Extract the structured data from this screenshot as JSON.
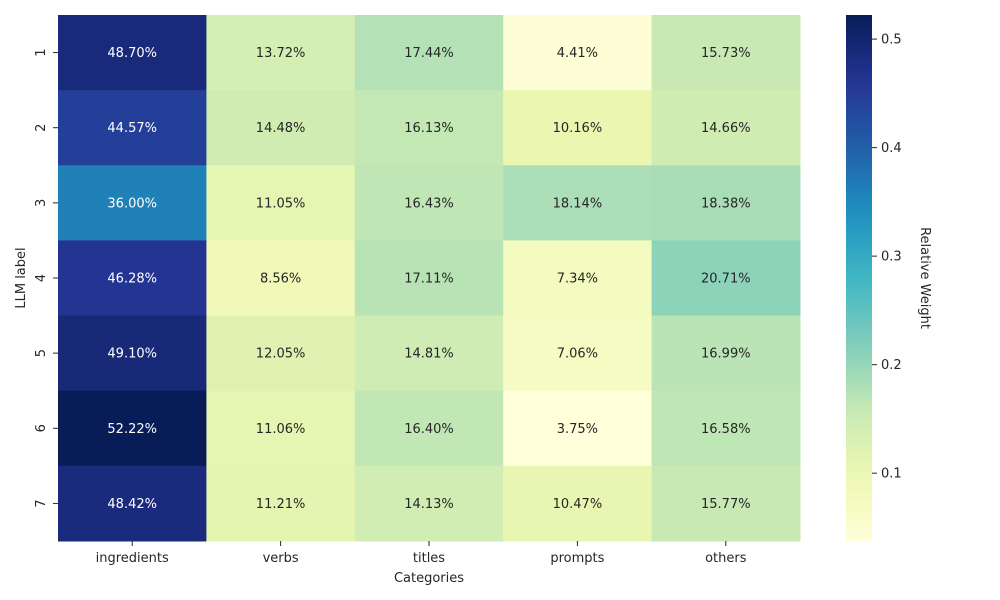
{
  "chart_data": {
    "type": "heatmap",
    "xlabel": "Categories",
    "ylabel": "LLM label",
    "colorbar_label": "Relative Weight",
    "columns": [
      "ingredients",
      "verbs",
      "titles",
      "prompts",
      "others"
    ],
    "rows": [
      "1",
      "2",
      "3",
      "4",
      "5",
      "6",
      "7"
    ],
    "values": [
      [
        0.487,
        0.1372,
        0.1744,
        0.0441,
        0.1573
      ],
      [
        0.4457,
        0.1448,
        0.1613,
        0.1016,
        0.1466
      ],
      [
        0.36,
        0.1105,
        0.1643,
        0.1814,
        0.1838
      ],
      [
        0.4628,
        0.0856,
        0.1711,
        0.0734,
        0.2071
      ],
      [
        0.491,
        0.1205,
        0.1481,
        0.0706,
        0.1699
      ],
      [
        0.5222,
        0.1106,
        0.164,
        0.0375,
        0.1658
      ],
      [
        0.4842,
        0.1121,
        0.1413,
        0.1047,
        0.1577
      ]
    ],
    "cell_labels": [
      [
        "48.70%",
        "13.72%",
        "17.44%",
        "4.41%",
        "15.73%"
      ],
      [
        "44.57%",
        "14.48%",
        "16.13%",
        "10.16%",
        "14.66%"
      ],
      [
        "36.00%",
        "11.05%",
        "16.43%",
        "18.14%",
        "18.38%"
      ],
      [
        "46.28%",
        "8.56%",
        "17.11%",
        "7.34%",
        "20.71%"
      ],
      [
        "49.10%",
        "12.05%",
        "14.81%",
        "7.06%",
        "16.99%"
      ],
      [
        "52.22%",
        "11.06%",
        "16.40%",
        "3.75%",
        "16.58%"
      ],
      [
        "48.42%",
        "11.21%",
        "14.13%",
        "10.47%",
        "15.77%"
      ]
    ],
    "colormap": "YlGnBu",
    "color_range": [
      0.0375,
      0.5222
    ],
    "colorbar_ticks": [
      "0.1",
      "0.2",
      "0.3",
      "0.4",
      "0.5"
    ],
    "colorbar_tick_values": [
      0.1,
      0.2,
      0.3,
      0.4,
      0.5
    ],
    "legend": "colorbar-right",
    "grid": false
  }
}
